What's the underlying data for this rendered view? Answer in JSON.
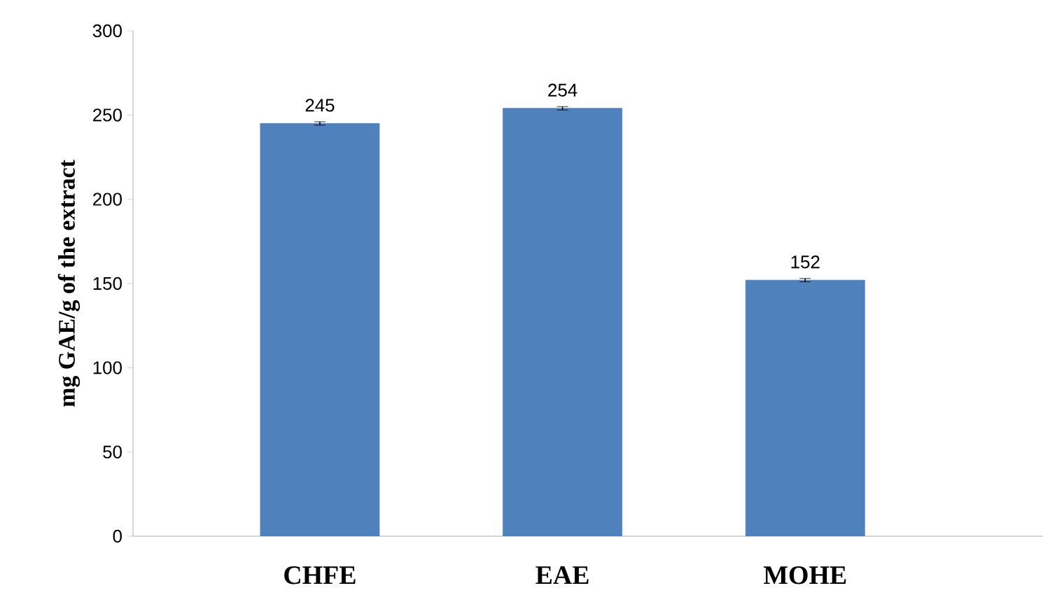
{
  "chart_data": {
    "type": "bar",
    "ylabel": "mg GAE/g of the extract",
    "categories": [
      "CHFE",
      "EAE",
      "MOHE"
    ],
    "values": [
      245,
      254,
      152
    ],
    "errors": [
      1,
      1,
      1
    ],
    "color": "#4f81bd",
    "ylim": [
      0,
      300
    ],
    "yticks": [
      0,
      50,
      100,
      150,
      200,
      250,
      300
    ],
    "data_labels": true,
    "grid": false
  }
}
